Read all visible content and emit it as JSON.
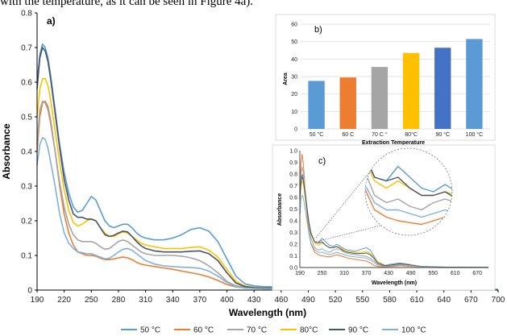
{
  "header_text": "with the temperature, as it can be seen in Figure 4a).",
  "chart_data": [
    {
      "panel": "a)",
      "type": "line",
      "xlabel": "Wavelength (nm)",
      "ylabel": "Absorbance",
      "xlim": [
        190,
        700
      ],
      "ylim": [
        0,
        0.8
      ],
      "xticks": [
        190,
        220,
        250,
        280,
        310,
        340,
        370,
        400,
        430,
        460,
        490,
        520,
        550,
        580,
        610,
        640,
        670,
        700
      ],
      "yticks": [
        0,
        0.1,
        0.2,
        0.3,
        0.4,
        0.5,
        0.6,
        0.7,
        0.8
      ],
      "ytick_labels": [
        "0",
        "0.1",
        "0.2",
        "0.3",
        "0.4",
        "0.5",
        "0.6",
        "0.7",
        "0.8"
      ],
      "grid": false,
      "legend_position": "bottom",
      "x": [
        190,
        193,
        196,
        199,
        202,
        205,
        210,
        215,
        220,
        225,
        230,
        235,
        240,
        245,
        250,
        255,
        260,
        265,
        270,
        275,
        280,
        285,
        290,
        295,
        300,
        305,
        310,
        320,
        330,
        340,
        350,
        360,
        370,
        380,
        390,
        400,
        410,
        420,
        430,
        440,
        450,
        460,
        480,
        500,
        520,
        540,
        560,
        580,
        600,
        620,
        640,
        660,
        680,
        700
      ],
      "series": [
        {
          "name": "50 °C",
          "color": "#5b9bd5",
          "values": [
            0.6,
            0.68,
            0.71,
            0.7,
            0.67,
            0.62,
            0.52,
            0.42,
            0.34,
            0.28,
            0.24,
            0.225,
            0.23,
            0.25,
            0.27,
            0.26,
            0.23,
            0.2,
            0.185,
            0.18,
            0.185,
            0.19,
            0.19,
            0.18,
            0.165,
            0.155,
            0.15,
            0.145,
            0.145,
            0.15,
            0.16,
            0.175,
            0.18,
            0.17,
            0.14,
            0.09,
            0.04,
            0.018,
            0.012,
            0.01,
            0.009,
            0.008,
            0.007,
            0.006,
            0.005,
            0.005,
            0.004,
            0.004,
            0.003,
            0.003,
            0.002,
            0.002,
            0.002,
            0.002
          ]
        },
        {
          "name": "60 °C",
          "color": "#ed7d31",
          "values": [
            0.4,
            0.5,
            0.54,
            0.545,
            0.53,
            0.49,
            0.4,
            0.3,
            0.22,
            0.165,
            0.13,
            0.11,
            0.105,
            0.1,
            0.1,
            0.098,
            0.092,
            0.088,
            0.088,
            0.09,
            0.093,
            0.095,
            0.093,
            0.088,
            0.08,
            0.075,
            0.072,
            0.068,
            0.064,
            0.06,
            0.055,
            0.05,
            0.045,
            0.038,
            0.028,
            0.016,
            0.009,
            0.006,
            0.005,
            0.004,
            0.004,
            0.003,
            0.003,
            0.003,
            0.002,
            0.002,
            0.002,
            0.002,
            0.001,
            0.001,
            0.001,
            0.001,
            0.001,
            0.001
          ]
        },
        {
          "name": "70 °C",
          "color": "#a5a5a5",
          "values": [
            0.42,
            0.52,
            0.545,
            0.54,
            0.52,
            0.48,
            0.4,
            0.31,
            0.24,
            0.19,
            0.16,
            0.145,
            0.14,
            0.14,
            0.14,
            0.135,
            0.125,
            0.118,
            0.12,
            0.13,
            0.14,
            0.145,
            0.14,
            0.13,
            0.12,
            0.11,
            0.105,
            0.1,
            0.1,
            0.1,
            0.098,
            0.093,
            0.085,
            0.07,
            0.05,
            0.025,
            0.012,
            0.008,
            0.006,
            0.005,
            0.005,
            0.004,
            0.004,
            0.003,
            0.003,
            0.003,
            0.002,
            0.002,
            0.002,
            0.002,
            0.002,
            0.001,
            0.001,
            0.001
          ]
        },
        {
          "name": "80°C",
          "color": "#ffc000",
          "values": [
            0.5,
            0.58,
            0.61,
            0.61,
            0.59,
            0.55,
            0.46,
            0.37,
            0.29,
            0.23,
            0.195,
            0.185,
            0.19,
            0.2,
            0.205,
            0.2,
            0.18,
            0.165,
            0.155,
            0.155,
            0.162,
            0.168,
            0.165,
            0.155,
            0.145,
            0.135,
            0.13,
            0.125,
            0.12,
            0.12,
            0.12,
            0.123,
            0.125,
            0.115,
            0.095,
            0.06,
            0.025,
            0.012,
            0.008,
            0.007,
            0.006,
            0.005,
            0.005,
            0.004,
            0.004,
            0.003,
            0.003,
            0.003,
            0.002,
            0.002,
            0.002,
            0.002,
            0.002,
            0.001
          ]
        },
        {
          "name": "90 °C",
          "color": "#44546a",
          "values": [
            0.58,
            0.67,
            0.7,
            0.69,
            0.66,
            0.61,
            0.51,
            0.41,
            0.32,
            0.26,
            0.22,
            0.21,
            0.21,
            0.205,
            0.205,
            0.2,
            0.18,
            0.16,
            0.155,
            0.158,
            0.165,
            0.17,
            0.168,
            0.155,
            0.14,
            0.128,
            0.12,
            0.113,
            0.11,
            0.11,
            0.11,
            0.112,
            0.113,
            0.105,
            0.085,
            0.05,
            0.02,
            0.01,
            0.007,
            0.006,
            0.006,
            0.005,
            0.005,
            0.004,
            0.004,
            0.003,
            0.003,
            0.003,
            0.002,
            0.002,
            0.002,
            0.002,
            0.001,
            0.001
          ]
        },
        {
          "name": "100 °C",
          "color": "#7fb0e0",
          "values": [
            0.36,
            0.42,
            0.44,
            0.435,
            0.41,
            0.37,
            0.3,
            0.22,
            0.165,
            0.135,
            0.12,
            0.11,
            0.108,
            0.105,
            0.105,
            0.1,
            0.095,
            0.09,
            0.092,
            0.1,
            0.11,
            0.118,
            0.12,
            0.115,
            0.105,
            0.095,
            0.085,
            0.075,
            0.07,
            0.068,
            0.066,
            0.065,
            0.063,
            0.055,
            0.04,
            0.022,
            0.01,
            0.006,
            0.005,
            0.004,
            0.004,
            0.004,
            0.003,
            0.003,
            0.003,
            0.002,
            0.002,
            0.002,
            0.002,
            0.002,
            0.001,
            0.001,
            0.001,
            0.001
          ]
        }
      ]
    },
    {
      "panel": "b)",
      "type": "bar",
      "xlabel": "Extraction Temperature",
      "ylabel": "Area",
      "ylim": [
        0,
        60
      ],
      "yticks": [
        0,
        10,
        20,
        30,
        40,
        50,
        60
      ],
      "grid": true,
      "categories": [
        "50 °C",
        "60  C",
        "70  C °",
        "80°C",
        "90 °C",
        "100 °C"
      ],
      "values": [
        27.5,
        29.5,
        35.5,
        43.5,
        46.5,
        51.5
      ],
      "bar_colors": [
        "#5b9bd5",
        "#ed7d31",
        "#a5a5a5",
        "#ffc000",
        "#4472c4",
        "#5b9bd5"
      ]
    },
    {
      "panel": "c)",
      "type": "line",
      "xlabel": "Wavelength (nm)",
      "ylabel": "Absorbance",
      "xlim": [
        190,
        700
      ],
      "ylim": [
        0,
        1.0
      ],
      "xticks": [
        190,
        250,
        310,
        370,
        430,
        490,
        550,
        610,
        670
      ],
      "yticks": [
        0,
        0.1,
        0.2,
        0.3,
        0.4,
        0.5,
        0.6,
        0.7,
        0.8,
        0.9,
        1.0
      ],
      "ytick_labels": [
        "0.0",
        "0.1",
        "0.2",
        "0.3",
        "0.4",
        "0.5",
        "0.6",
        "0.7",
        "0.8",
        "0.9",
        "1.0"
      ],
      "grid": false,
      "x": [
        190,
        193,
        196,
        199,
        202,
        205,
        210,
        215,
        220,
        230,
        240,
        250,
        260,
        270,
        280,
        290,
        300,
        310,
        320,
        340,
        360,
        370,
        380,
        390,
        400,
        420,
        440,
        460,
        480,
        490,
        500,
        520,
        560,
        600,
        650,
        700
      ],
      "series": [
        {
          "name": "50 °C",
          "color": "#5b9bd5",
          "values": [
            0.6,
            0.75,
            0.8,
            0.78,
            0.72,
            0.64,
            0.5,
            0.38,
            0.3,
            0.22,
            0.21,
            0.25,
            0.22,
            0.19,
            0.18,
            0.2,
            0.18,
            0.16,
            0.15,
            0.14,
            0.16,
            0.17,
            0.15,
            0.1,
            0.05,
            0.02,
            0.03,
            0.04,
            0.03,
            0.025,
            0.02,
            0.01,
            0.005,
            0.003,
            0.002,
            0.001
          ]
        },
        {
          "name": "60 °C",
          "color": "#ed7d31",
          "values": [
            0.7,
            0.9,
            0.97,
            0.9,
            0.78,
            0.62,
            0.42,
            0.28,
            0.2,
            0.13,
            0.11,
            0.1,
            0.095,
            0.09,
            0.1,
            0.11,
            0.1,
            0.09,
            0.08,
            0.07,
            0.06,
            0.055,
            0.04,
            0.02,
            0.01,
            0.006,
            0.01,
            0.015,
            0.012,
            0.01,
            0.008,
            0.005,
            0.003,
            0.002,
            0.001,
            0.001
          ]
        },
        {
          "name": "70 °C",
          "color": "#a5a5a5",
          "values": [
            0.62,
            0.8,
            0.86,
            0.82,
            0.74,
            0.63,
            0.46,
            0.33,
            0.25,
            0.17,
            0.15,
            0.16,
            0.14,
            0.13,
            0.15,
            0.16,
            0.15,
            0.13,
            0.12,
            0.11,
            0.1,
            0.095,
            0.08,
            0.06,
            0.03,
            0.012,
            0.02,
            0.03,
            0.025,
            0.02,
            0.015,
            0.008,
            0.004,
            0.003,
            0.002,
            0.001
          ]
        },
        {
          "name": "80°C",
          "color": "#ffc000",
          "values": [
            0.55,
            0.7,
            0.74,
            0.72,
            0.66,
            0.58,
            0.46,
            0.35,
            0.28,
            0.21,
            0.19,
            0.21,
            0.19,
            0.17,
            0.17,
            0.18,
            0.17,
            0.15,
            0.14,
            0.13,
            0.13,
            0.14,
            0.12,
            0.09,
            0.05,
            0.018,
            0.025,
            0.035,
            0.028,
            0.022,
            0.018,
            0.01,
            0.005,
            0.003,
            0.002,
            0.001
          ]
        },
        {
          "name": "90 °C",
          "color": "#44546a",
          "values": [
            0.58,
            0.73,
            0.78,
            0.75,
            0.69,
            0.61,
            0.48,
            0.37,
            0.29,
            0.22,
            0.21,
            0.22,
            0.19,
            0.17,
            0.17,
            0.18,
            0.16,
            0.14,
            0.13,
            0.12,
            0.12,
            0.125,
            0.11,
            0.08,
            0.04,
            0.015,
            0.022,
            0.032,
            0.026,
            0.02,
            0.016,
            0.009,
            0.004,
            0.003,
            0.002,
            0.001
          ]
        },
        {
          "name": "100 °C",
          "color": "#7fb0e0",
          "values": [
            0.45,
            0.58,
            0.62,
            0.6,
            0.55,
            0.49,
            0.38,
            0.28,
            0.21,
            0.15,
            0.13,
            0.13,
            0.12,
            0.11,
            0.12,
            0.13,
            0.12,
            0.11,
            0.1,
            0.09,
            0.085,
            0.08,
            0.065,
            0.045,
            0.022,
            0.01,
            0.015,
            0.022,
            0.018,
            0.015,
            0.012,
            0.007,
            0.003,
            0.002,
            0.001,
            0.001
          ]
        }
      ]
    }
  ]
}
